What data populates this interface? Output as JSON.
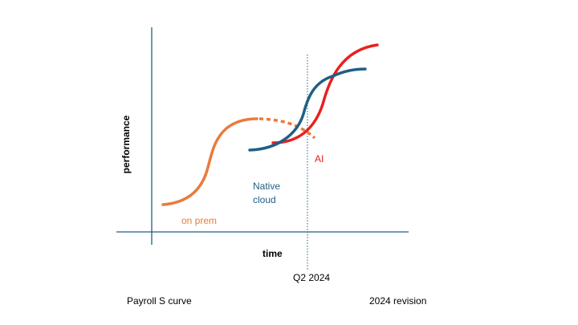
{
  "diagram": {
    "axes": {
      "y_label": "performance",
      "x_label": "time"
    },
    "marker_label": "Q2 2024",
    "curves": [
      {
        "id": "on-prem",
        "label": "on prem",
        "color": "#E97B3A"
      },
      {
        "id": "native-cloud",
        "label_lines": [
          "Native",
          "cloud"
        ],
        "color": "#1F5F85"
      },
      {
        "id": "ai",
        "label": "AI",
        "color": "#E8201F"
      }
    ],
    "footer": {
      "left": "Payroll S curve",
      "right": "2024 revision"
    }
  }
}
